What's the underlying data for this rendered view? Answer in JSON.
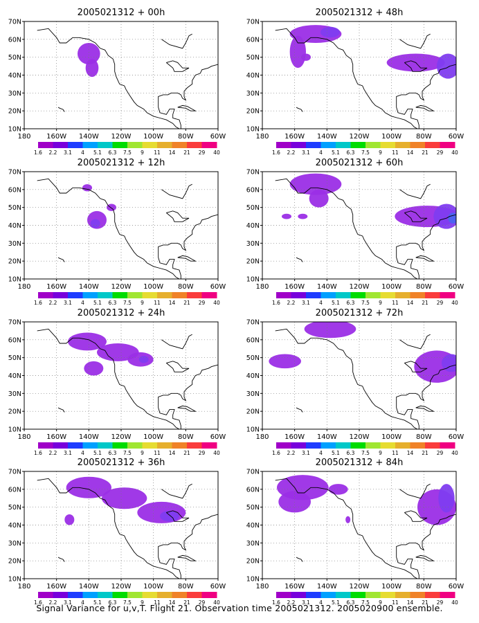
{
  "caption": "Signal Variance for u,v,T. Flight 21. Observation time 2005021312. 2005020900 ensemble.",
  "colorbar": {
    "labels": [
      "1.6",
      "2.2",
      "3.1",
      "4",
      "5.1",
      "6.3",
      "7.5",
      "9",
      "11",
      "14",
      "21",
      "29",
      "40"
    ],
    "colors": [
      "#a000c8",
      "#7800dc",
      "#1e3cff",
      "#00a0ff",
      "#00c8c8",
      "#00dc00",
      "#a0e632",
      "#e6dc32",
      "#e6af2d",
      "#f08228",
      "#fa3c3c",
      "#f00082"
    ]
  },
  "axes": {
    "lon_labels": [
      "180",
      "160W",
      "140W",
      "120W",
      "100W",
      "80W",
      "60W"
    ],
    "lat_labels": [
      "10N",
      "20N",
      "30N",
      "40N",
      "50N",
      "60N",
      "70N"
    ],
    "xlim": [
      -180,
      -60
    ],
    "ylim": [
      10,
      70
    ],
    "grid": "dotted"
  },
  "chart_data": [
    {
      "type": "heatmap",
      "title": "2005021312 + 00h",
      "blobs": [
        {
          "lon": -138,
          "lat": 44,
          "rlon": 4,
          "rlat": 5,
          "level": 0
        },
        {
          "lon": -140,
          "lat": 52,
          "rlon": 7,
          "rlat": 6,
          "level": 0
        }
      ]
    },
    {
      "type": "heatmap",
      "title": "2005021312 + 12h",
      "blobs": [
        {
          "lon": -135,
          "lat": 43,
          "rlon": 6,
          "rlat": 5,
          "level": 0
        },
        {
          "lon": -136,
          "lat": 41,
          "rlon": 3,
          "rlat": 2.5,
          "level": 1
        },
        {
          "lon": -126,
          "lat": 50,
          "rlon": 3,
          "rlat": 2,
          "level": 0
        },
        {
          "lon": -141,
          "lat": 61,
          "rlon": 3,
          "rlat": 2,
          "level": 0
        }
      ]
    },
    {
      "type": "heatmap",
      "title": "2005021312 + 24h",
      "blobs": [
        {
          "lon": -141,
          "lat": 59,
          "rlon": 12,
          "rlat": 5,
          "level": 0
        },
        {
          "lon": -122,
          "lat": 53,
          "rlon": 13,
          "rlat": 5,
          "level": 0
        },
        {
          "lon": -108,
          "lat": 49,
          "rlon": 8,
          "rlat": 4,
          "level": 0
        },
        {
          "lon": -106,
          "lat": 49,
          "rlon": 3,
          "rlat": 2,
          "level": 1
        },
        {
          "lon": -137,
          "lat": 44,
          "rlon": 6,
          "rlat": 4,
          "level": 0
        }
      ]
    },
    {
      "type": "heatmap",
      "title": "2005021312 + 36h",
      "blobs": [
        {
          "lon": -140,
          "lat": 61,
          "rlon": 14,
          "rlat": 6,
          "level": 0
        },
        {
          "lon": -118,
          "lat": 55,
          "rlon": 14,
          "rlat": 6,
          "level": 0
        },
        {
          "lon": -95,
          "lat": 47,
          "rlon": 15,
          "rlat": 6,
          "level": 0
        },
        {
          "lon": -90,
          "lat": 45,
          "rlon": 6,
          "rlat": 3,
          "level": 1
        },
        {
          "lon": -152,
          "lat": 43,
          "rlon": 3,
          "rlat": 3,
          "level": 0
        }
      ]
    },
    {
      "type": "heatmap",
      "title": "2005021312 + 48h",
      "blobs": [
        {
          "lon": -147,
          "lat": 63,
          "rlon": 16,
          "rlat": 5,
          "level": 0
        },
        {
          "lon": -138,
          "lat": 64,
          "rlon": 6,
          "rlat": 3,
          "level": 1
        },
        {
          "lon": -158,
          "lat": 53,
          "rlon": 5,
          "rlat": 9,
          "level": 0
        },
        {
          "lon": -153,
          "lat": 50,
          "rlon": 3,
          "rlat": 2,
          "level": 0
        },
        {
          "lon": -85,
          "lat": 47,
          "rlon": 18,
          "rlat": 5,
          "level": 0
        },
        {
          "lon": -65,
          "lat": 45,
          "rlon": 7,
          "rlat": 7,
          "level": 1
        }
      ]
    },
    {
      "type": "heatmap",
      "title": "2005021312 + 60h",
      "blobs": [
        {
          "lon": -147,
          "lat": 63,
          "rlon": 16,
          "rlat": 6,
          "level": 0
        },
        {
          "lon": -145,
          "lat": 55,
          "rlon": 6,
          "rlat": 5,
          "level": 0
        },
        {
          "lon": -165,
          "lat": 45,
          "rlon": 3,
          "rlat": 1.5,
          "level": 0
        },
        {
          "lon": -155,
          "lat": 45,
          "rlon": 3,
          "rlat": 1.5,
          "level": 0
        },
        {
          "lon": -78,
          "lat": 45,
          "rlon": 20,
          "rlat": 6,
          "level": 0
        },
        {
          "lon": -66,
          "lat": 45,
          "rlon": 8,
          "rlat": 7,
          "level": 1
        },
        {
          "lon": -62,
          "lat": 44,
          "rlon": 3,
          "rlat": 3,
          "level": 2
        }
      ]
    },
    {
      "type": "heatmap",
      "title": "2005021312 + 72h",
      "blobs": [
        {
          "lon": -138,
          "lat": 66,
          "rlon": 16,
          "rlat": 5,
          "level": 0
        },
        {
          "lon": -166,
          "lat": 48,
          "rlon": 10,
          "rlat": 4,
          "level": 0
        },
        {
          "lon": -72,
          "lat": 45,
          "rlon": 14,
          "rlat": 9,
          "level": 0
        },
        {
          "lon": -63,
          "lat": 47,
          "rlon": 6,
          "rlat": 5,
          "level": 1
        }
      ]
    },
    {
      "type": "heatmap",
      "title": "2005021312 + 84h",
      "blobs": [
        {
          "lon": -155,
          "lat": 61,
          "rlon": 16,
          "rlat": 7,
          "level": 0
        },
        {
          "lon": -160,
          "lat": 53,
          "rlon": 10,
          "rlat": 6,
          "level": 0
        },
        {
          "lon": -133,
          "lat": 60,
          "rlon": 6,
          "rlat": 3,
          "level": 0
        },
        {
          "lon": -72,
          "lat": 50,
          "rlon": 12,
          "rlat": 10,
          "level": 0
        },
        {
          "lon": -66,
          "lat": 55,
          "rlon": 5,
          "rlat": 8,
          "level": 1
        },
        {
          "lon": -127,
          "lat": 43,
          "rlon": 1.5,
          "rlat": 2,
          "level": 0
        }
      ]
    }
  ]
}
